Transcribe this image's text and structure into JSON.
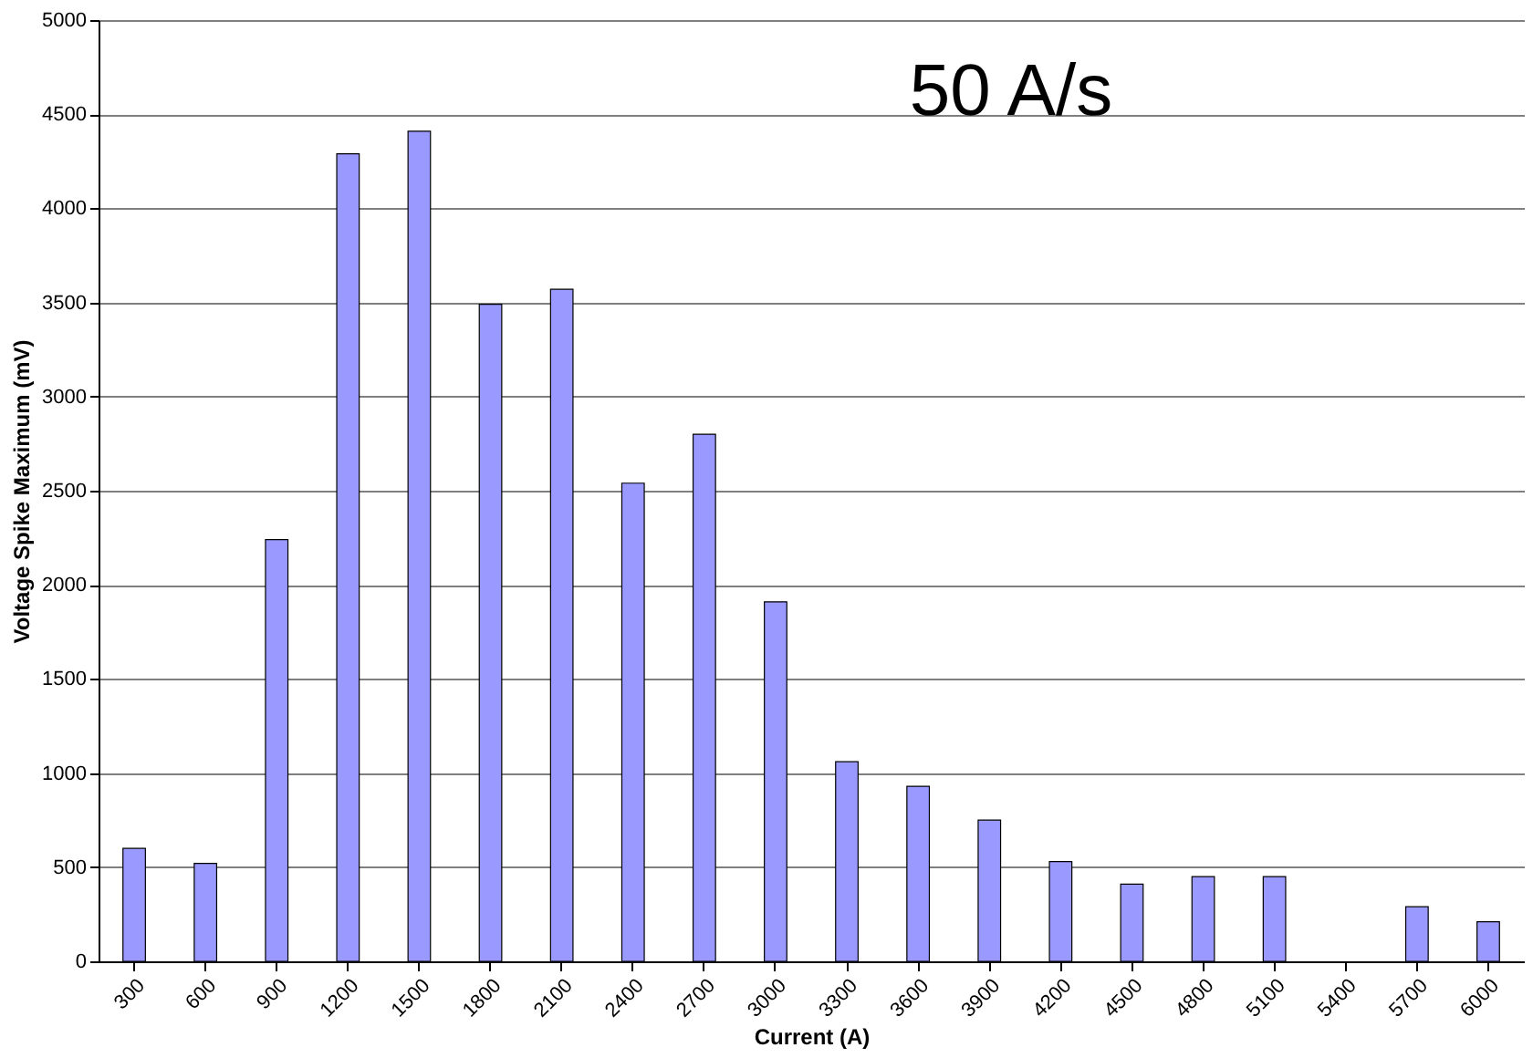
{
  "chart_data": {
    "type": "bar",
    "xlabel": "Current (A)",
    "ylabel": "Voltage Spike Maximum (mV)",
    "categories": [
      "300",
      "600",
      "900",
      "1200",
      "1500",
      "1800",
      "2100",
      "2400",
      "2700",
      "3000",
      "3300",
      "3600",
      "3900",
      "4200",
      "4500",
      "4800",
      "5100",
      "5400",
      "5700",
      "6000"
    ],
    "values": [
      600,
      520,
      2240,
      4290,
      4410,
      3490,
      3570,
      2540,
      2800,
      1910,
      1060,
      930,
      750,
      530,
      410,
      450,
      450,
      null,
      290,
      210
    ],
    "color": "#9999ff",
    "ylim": [
      0,
      5000
    ],
    "yticks": [
      0,
      500,
      1000,
      1500,
      2000,
      2500,
      3000,
      3500,
      4000,
      4500,
      5000
    ],
    "grid": "y",
    "annotations": [
      "50 A/s"
    ]
  }
}
